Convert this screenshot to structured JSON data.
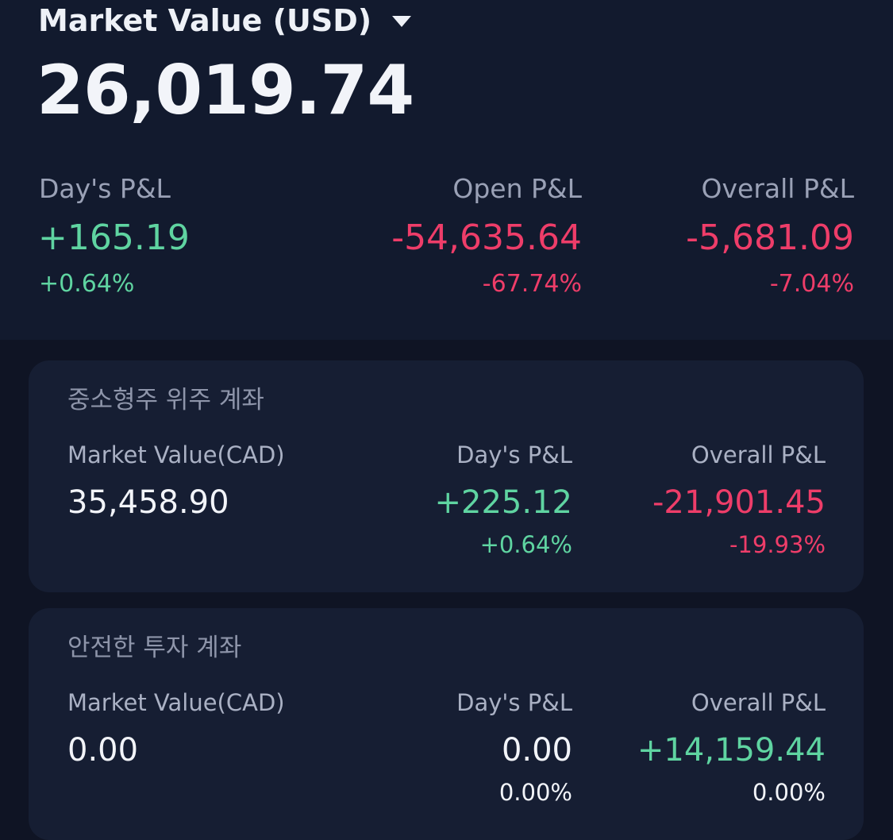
{
  "summary": {
    "title": "Market Value (USD)",
    "value": "26,019.74",
    "days_pnl": {
      "label": "Day's P&L",
      "value": "+165.19",
      "pct": "+0.64%"
    },
    "open_pnl": {
      "label": "Open P&L",
      "value": "-54,635.64",
      "pct": "-67.74%"
    },
    "overall_pnl": {
      "label": "Overall P&L",
      "value": "-5,681.09",
      "pct": "-7.04%"
    }
  },
  "accounts": [
    {
      "name": "중소형주 위주 계좌",
      "mv_label": "Market Value(CAD)",
      "mv_value": "35,458.90",
      "day_label": "Day's P&L",
      "day_value": "+225.12",
      "day_pct": "+0.64%",
      "overall_label": "Overall P&L",
      "overall_value": "-21,901.45",
      "overall_pct": "-19.93%"
    },
    {
      "name": "안전한 투자 계좌",
      "mv_label": "Market Value(CAD)",
      "mv_value": "0.00",
      "day_label": "Day's P&L",
      "day_value": "0.00",
      "day_pct": "0.00%",
      "overall_label": "Overall P&L",
      "overall_value": "+14,159.44",
      "overall_pct": "0.00%"
    }
  ],
  "colors": {
    "background": "#0f1424",
    "header_background": "#121a2e",
    "card_background": "#161e33",
    "positive": "#5fd4a1",
    "negative": "#ee3d69",
    "label": "#9aa1b6"
  },
  "icons": {
    "currency_dropdown": "caret-down-icon"
  }
}
